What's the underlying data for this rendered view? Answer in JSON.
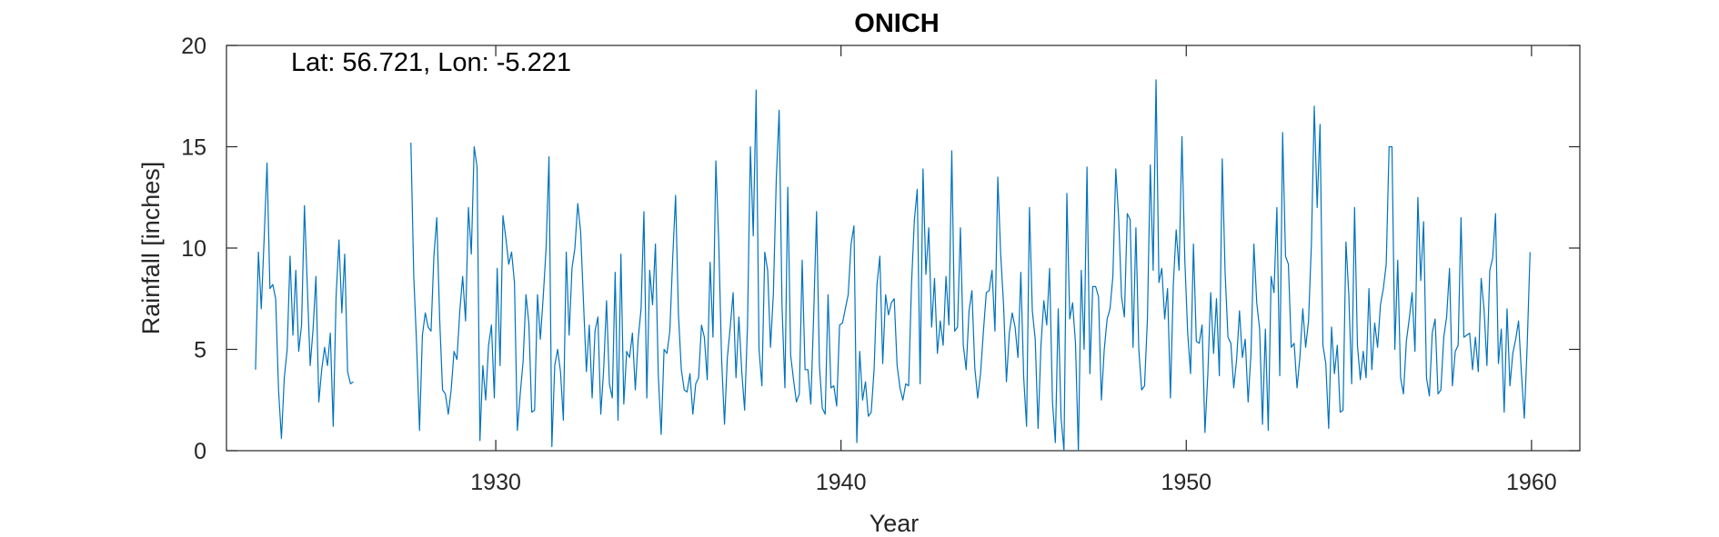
{
  "chart_data": {
    "type": "line",
    "title": "ONICH",
    "xlabel": "Year",
    "ylabel": "Rainfall [inches]",
    "annotation": "Lat: 56.721, Lon: -5.221",
    "xlim": [
      1922.2,
      1961.4
    ],
    "ylim": [
      0,
      20
    ],
    "xticks": [
      1930,
      1940,
      1950,
      1960
    ],
    "yticks": [
      0,
      5,
      10,
      15,
      20
    ],
    "grid": false,
    "series_color": "#0072BD",
    "series": [
      {
        "segments": [
          {
            "start": "1923-01",
            "values": [
              4.0,
              9.8,
              7.0,
              10.5,
              14.2,
              8.0,
              8.2,
              7.5,
              3.0,
              0.6,
              3.6,
              5.0,
              9.6,
              5.7,
              8.9,
              4.9,
              6.2,
              12.1,
              8.1,
              4.2,
              6.0,
              8.6,
              2.4,
              4.0,
              5.1,
              4.2,
              5.8,
              1.2,
              7.6,
              10.4,
              6.8,
              9.7,
              3.9,
              3.3,
              3.4
            ]
          },
          {
            "start": "1927-07",
            "values": [
              15.2,
              8.6,
              5.2,
              1.0,
              5.7,
              6.8,
              6.1,
              5.9,
              9.6,
              11.5,
              6.5,
              3.0,
              2.8,
              1.8,
              3.0,
              4.9,
              4.5,
              6.9,
              8.6,
              6.4,
              12.0,
              9.7,
              15.0,
              14.0,
              0.5,
              4.2,
              2.5,
              5.2,
              6.2,
              2.6,
              9.0,
              4.2,
              11.6,
              10.5,
              9.2,
              9.8,
              8.3,
              1.0,
              2.8,
              4.4,
              7.7,
              6.3,
              1.9,
              2.0,
              7.7,
              5.5,
              7.6,
              10.0,
              14.5,
              0.2,
              4.2,
              5.0,
              3.9,
              1.5,
              9.8,
              5.7,
              9.0,
              10.0,
              12.2,
              10.8,
              7.3,
              3.9,
              6.2,
              2.6,
              5.9,
              6.6,
              1.8,
              4.0,
              7.4,
              3.3,
              2.6,
              8.8,
              1.5,
              9.7,
              2.3,
              4.9,
              4.6,
              5.8,
              3.0,
              5.5,
              7.0,
              11.8,
              2.6,
              8.9,
              7.2,
              10.2,
              3.7,
              0.8,
              5.0,
              4.8,
              5.9,
              9.5,
              12.6,
              6.7,
              4.0,
              3.0,
              2.9,
              3.8,
              1.8,
              3.3,
              3.6,
              6.2,
              5.6,
              3.5,
              9.3,
              5.6,
              14.3,
              10.3,
              4.5,
              1.3,
              4.6,
              6.1,
              7.8,
              3.6,
              6.6,
              3.9,
              2.0,
              6.2,
              15.0,
              10.6,
              17.8,
              5.0,
              3.2,
              9.8,
              8.9,
              5.1,
              7.8,
              13.4,
              16.8,
              7.1,
              3.1,
              13.0,
              4.7,
              3.5,
              2.4,
              2.8,
              9.4,
              4.0,
              4.0,
              2.3,
              6.7,
              11.8,
              4.2,
              2.1,
              1.8,
              7.7,
              3.1,
              3.2,
              2.2,
              6.2,
              6.3,
              7.0,
              7.7,
              10.2,
              11.1,
              0.4,
              4.9,
              2.5,
              3.4,
              1.7,
              1.9,
              4.0,
              8.2,
              9.6,
              4.3,
              7.7,
              6.7,
              7.3,
              7.5,
              4.2,
              3.1,
              2.5,
              3.3,
              3.2,
              8.2,
              11.4,
              12.9,
              3.3,
              13.9,
              8.7,
              11.0,
              6.1,
              8.5,
              4.8,
              6.4,
              5.2,
              8.6,
              6.2,
              14.8,
              5.9,
              6.1,
              11.0,
              5.2,
              4.0,
              6.9,
              7.9,
              4.1,
              2.6,
              3.8,
              5.9,
              7.8,
              7.9,
              8.9,
              5.9,
              13.5,
              9.7,
              7.2,
              3.4,
              5.8,
              6.8,
              6.1,
              4.6,
              8.8,
              3.6,
              1.2,
              12.0,
              6.9,
              5.5,
              1.1,
              5.2,
              7.4,
              6.2,
              9.0,
              2.4,
              0.4,
              7.0,
              1.6,
              0.0,
              12.7,
              6.5,
              7.3,
              5.3,
              0.0,
              8.9,
              5.0,
              14.0,
              3.8,
              8.1,
              8.1,
              7.6,
              2.5,
              5.0,
              6.5,
              7.0,
              8.6,
              13.9,
              11.5,
              7.6,
              6.6,
              11.7,
              11.4,
              5.1,
              11.0,
              5.0,
              3.0,
              3.2,
              6.5,
              14.1,
              8.9,
              18.3,
              8.3,
              9.0,
              6.5,
              8.0,
              2.6,
              8.2,
              10.9,
              8.9,
              15.5,
              9.4,
              5.8,
              3.8,
              10.2,
              5.4,
              5.3,
              6.2,
              0.9,
              3.8,
              7.8,
              4.8,
              7.5,
              3.7,
              14.4,
              8.8,
              5.6,
              5.3,
              3.1,
              4.5,
              6.9,
              4.6,
              5.5,
              2.4,
              4.8,
              10.2,
              7.3,
              6.0,
              1.3,
              6.0,
              1.0,
              8.6,
              7.8,
              12.0,
              3.7,
              15.7,
              9.6,
              9.2,
              5.1,
              5.3,
              3.1,
              4.6,
              7.0,
              5.1,
              6.4,
              10.2,
              17.0,
              12.0,
              16.1,
              5.2,
              4.3,
              1.1,
              6.1,
              3.8,
              5.2,
              1.9,
              2.0,
              10.3,
              7.7,
              3.3,
              12.0,
              5.2,
              3.5,
              4.9,
              3.6,
              8.0,
              4.0,
              6.3,
              5.1,
              7.2,
              8.0,
              9.2,
              15.0,
              15.0,
              5.0,
              9.4,
              3.6,
              2.8,
              5.4,
              6.5,
              7.8,
              4.9,
              12.5,
              8.4,
              11.3,
              3.6,
              2.7,
              5.8,
              6.5,
              2.8,
              3.0,
              5.6,
              6.6,
              9.0,
              3.2,
              4.9,
              5.2,
              11.5,
              5.6,
              5.7,
              5.8,
              4.0,
              5.6,
              3.9,
              8.5,
              7.0,
              4.2,
              8.9,
              9.5,
              11.7,
              4.3,
              6.0,
              1.9,
              7.0,
              3.2,
              4.8,
              5.5,
              6.4,
              3.8,
              1.6,
              5.2,
              9.8
            ]
          }
        ]
      }
    ]
  }
}
